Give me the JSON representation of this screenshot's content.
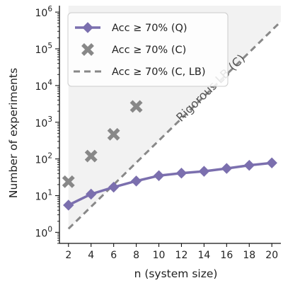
{
  "chart_data": {
    "type": "line",
    "xlabel": "n (system size)",
    "ylabel": "Number of experiments",
    "x_ticks": [
      2,
      4,
      6,
      8,
      10,
      12,
      14,
      16,
      18,
      20
    ],
    "y_scale": "log",
    "y_tick_exponents": [
      0,
      1,
      2,
      3,
      4,
      5,
      6
    ],
    "y_tick_base": "10",
    "xlim": [
      1.2,
      20.8
    ],
    "ylim": [
      0.5,
      1500000
    ],
    "grid": false,
    "legend_position": "top-left",
    "series": [
      {
        "name": "Acc ≥ 70% (Q)",
        "style": "solid line with diamond markers",
        "color": "#7b6fae",
        "x": [
          2,
          4,
          6,
          8,
          10,
          12,
          14,
          16,
          18,
          20
        ],
        "y": [
          5.5,
          11,
          17,
          25,
          35,
          41,
          46,
          55,
          67,
          78
        ]
      },
      {
        "name": "Acc ≥ 70% (C)",
        "style": "x markers",
        "color": "#888888",
        "x": [
          2,
          4,
          6,
          8
        ],
        "y": [
          24,
          120,
          470,
          2700
        ]
      },
      {
        "name": "Acc ≥ 70% (C, LB)",
        "style": "dashed line",
        "color": "#888888",
        "x": [
          2,
          20
        ],
        "y": [
          1.25,
          320000
        ]
      }
    ],
    "shaded_region": {
      "description": "area above the rigorous lower bound",
      "color": "#f2f2f2"
    },
    "annotation": {
      "text": "Rigorous LB (C)"
    }
  }
}
